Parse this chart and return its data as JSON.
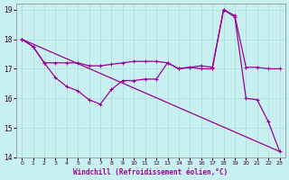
{
  "background_color": "#c8f0f0",
  "line_color": "#990099",
  "grid_color": "#aadddd",
  "xlabel": "Windchill (Refroidissement éolien,°C)",
  "xlim": [
    -0.5,
    23.5
  ],
  "ylim": [
    14,
    19.2
  ],
  "yticks": [
    14,
    15,
    16,
    17,
    18,
    19
  ],
  "xticks": [
    0,
    1,
    2,
    3,
    4,
    5,
    6,
    7,
    8,
    9,
    10,
    11,
    12,
    13,
    14,
    15,
    16,
    17,
    18,
    19,
    20,
    21,
    22,
    23
  ],
  "series1_x": [
    0,
    1,
    2,
    3,
    4,
    5,
    6,
    7,
    8,
    9,
    10,
    11,
    12,
    13,
    14,
    15,
    16,
    17,
    18,
    19,
    20,
    21,
    22,
    23
  ],
  "series1_y": [
    18.0,
    17.75,
    17.2,
    17.2,
    17.2,
    17.2,
    17.1,
    17.1,
    17.15,
    17.2,
    17.25,
    17.25,
    17.25,
    17.2,
    17.0,
    17.05,
    17.1,
    17.05,
    19.0,
    18.8,
    17.05,
    17.05,
    17.0,
    17.0
  ],
  "series2_x": [
    0,
    1,
    2,
    3,
    4,
    5,
    6,
    7,
    8,
    9,
    10,
    11,
    12,
    13,
    14,
    15,
    16,
    17,
    18,
    19,
    20,
    21,
    22,
    23
  ],
  "series2_y": [
    18.0,
    17.75,
    17.2,
    16.7,
    16.4,
    16.25,
    15.95,
    15.8,
    16.3,
    16.6,
    16.6,
    16.65,
    16.65,
    17.2,
    17.0,
    17.05,
    17.0,
    17.0,
    19.0,
    18.75,
    16.0,
    15.95,
    15.2,
    14.2
  ],
  "series3_x": [
    0,
    23
  ],
  "series3_y": [
    18.0,
    14.2
  ]
}
